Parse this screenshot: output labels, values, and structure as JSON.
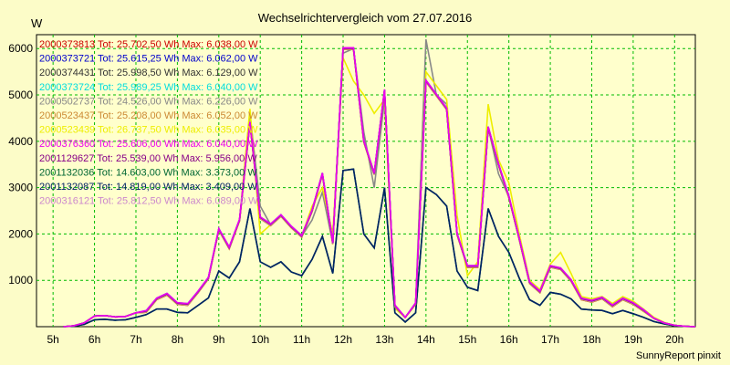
{
  "chart_data": {
    "type": "line",
    "title": "Wechselrichtervergleich vom 27.07.2016",
    "ylabel": "W",
    "xlabel": "",
    "footer": "SunnyReport pinxit",
    "ylim": [
      0,
      6300
    ],
    "xlim": [
      4.6,
      20.5
    ],
    "yticks": [
      1000,
      2000,
      3000,
      4000,
      5000,
      6000
    ],
    "xticks": [
      5,
      6,
      7,
      8,
      9,
      10,
      11,
      12,
      13,
      14,
      15,
      16,
      17,
      18,
      19,
      20
    ],
    "xtick_labels": [
      "5h",
      "6h",
      "7h",
      "8h",
      "9h",
      "10h",
      "11h",
      "12h",
      "13h",
      "14h",
      "15h",
      "16h",
      "17h",
      "18h",
      "19h",
      "20h"
    ],
    "grid": true,
    "legend_position": "top-left",
    "x": [
      5.25,
      5.5,
      5.75,
      6,
      6.25,
      6.5,
      6.75,
      7,
      7.25,
      7.5,
      7.75,
      8,
      8.25,
      8.5,
      8.75,
      9,
      9.25,
      9.5,
      9.75,
      10,
      10.25,
      10.5,
      10.75,
      11,
      11.25,
      11.5,
      11.75,
      12,
      12.25,
      12.5,
      12.75,
      13,
      13.25,
      13.5,
      13.75,
      14,
      14.25,
      14.5,
      14.75,
      15,
      15.25,
      15.5,
      15.75,
      16,
      16.25,
      16.5,
      16.75,
      17,
      17.25,
      17.5,
      17.75,
      18,
      18.25,
      18.5,
      18.75,
      19,
      19.25,
      19.5,
      19.75,
      20,
      20.25,
      20.5
    ],
    "series": [
      {
        "name": "2000373813 Tot: 25.702,50 Wh Max: 6.038,00 W",
        "color": "#cc0000",
        "group": "a"
      },
      {
        "name": "2000373721 Tot: 25.615,25 Wh Max: 6.062,00 W",
        "color": "#0000cc",
        "group": "a"
      },
      {
        "name": "2000374431 Tot: 25.998,50 Wh Max: 6.129,00 W",
        "color": "#333333",
        "group": "a"
      },
      {
        "name": "2000373724 Tot: 25.989,25 Wh Max: 6.040,00 W",
        "color": "#00dddd",
        "group": "a"
      },
      {
        "name": "2000502737 Tot: 24.526,00 Wh Max: 6.226,00 W",
        "color": "#888888",
        "group": "gray"
      },
      {
        "name": "2000523437 Tot: 25.208,00 Wh Max: 6.052,00 W",
        "color": "#cc8833",
        "group": "a"
      },
      {
        "name": "2000523439 Tot: 26.737,50 Wh Max: 6.035,00 W",
        "color": "#eeee00",
        "group": "yellow"
      },
      {
        "name": "2000376360 Tot: 25.606,00 Wh Max: 6.040,00 W",
        "color": "#ee00ee",
        "group": "a"
      },
      {
        "name": "2001129627 Tot: 25.539,00 Wh Max: 5.956,00 W",
        "color": "#880088",
        "group": "a"
      },
      {
        "name": "2001132036 Tot: 14.603,00 Wh Max: 3.373,00 W",
        "color": "#006633",
        "group": "b"
      },
      {
        "name": "2001132087 Tot: 14.819,00 Wh Max: 3.409,00 W",
        "color": "#002266",
        "group": "b"
      },
      {
        "name": "2000316121 Tot: 25.812,50 Wh Max: 6.089,00 W",
        "color": "#cc88cc",
        "group": "a"
      }
    ],
    "group_values": {
      "a": [
        0,
        20,
        80,
        230,
        240,
        210,
        220,
        300,
        330,
        600,
        700,
        500,
        480,
        750,
        1050,
        2100,
        1700,
        2300,
        4400,
        2350,
        2200,
        2400,
        2150,
        1950,
        2500,
        3300,
        1800,
        6000,
        6000,
        4000,
        3300,
        5100,
        450,
        200,
        500,
        5300,
        5000,
        4700,
        2000,
        1300,
        1300,
        4300,
        3500,
        2800,
        1900,
        950,
        750,
        1300,
        1250,
        1000,
        600,
        550,
        620,
        450,
        600,
        500,
        350,
        180,
        80,
        30,
        10,
        0
      ],
      "gray": [
        0,
        20,
        80,
        230,
        240,
        210,
        220,
        300,
        330,
        600,
        700,
        500,
        480,
        750,
        1050,
        2100,
        1700,
        2300,
        4600,
        2600,
        2200,
        2400,
        2150,
        1950,
        2300,
        2900,
        1800,
        5900,
        6000,
        4200,
        3000,
        4900,
        400,
        200,
        500,
        6200,
        5000,
        4800,
        2000,
        1300,
        1300,
        4300,
        3300,
        2800,
        1900,
        950,
        750,
        1300,
        1250,
        1000,
        600,
        550,
        620,
        450,
        600,
        500,
        350,
        180,
        80,
        30,
        10,
        0
      ],
      "yellow": [
        0,
        20,
        80,
        230,
        240,
        210,
        220,
        300,
        330,
        600,
        700,
        500,
        480,
        750,
        1050,
        2100,
        1700,
        2300,
        4700,
        2000,
        2200,
        2400,
        2150,
        1950,
        2600,
        3000,
        2000,
        5800,
        5300,
        5000,
        4600,
        4900,
        400,
        200,
        500,
        5500,
        5200,
        4900,
        2400,
        1100,
        1400,
        4800,
        3600,
        3100,
        2000,
        1000,
        800,
        1350,
        1600,
        1150,
        650,
        600,
        650,
        500,
        650,
        550,
        380,
        200,
        90,
        30,
        10,
        0
      ],
      "b": [
        0,
        10,
        50,
        150,
        160,
        140,
        150,
        200,
        260,
        380,
        380,
        310,
        300,
        460,
        620,
        1200,
        1050,
        1400,
        2550,
        1400,
        1280,
        1400,
        1180,
        1100,
        1450,
        1950,
        1150,
        3370,
        3400,
        2000,
        1700,
        3000,
        300,
        100,
        300,
        3000,
        2850,
        2600,
        1200,
        850,
        780,
        2550,
        1950,
        1600,
        1050,
        580,
        460,
        740,
        700,
        600,
        380,
        360,
        350,
        280,
        350,
        280,
        200,
        110,
        60,
        20,
        5,
        0
      ]
    }
  }
}
